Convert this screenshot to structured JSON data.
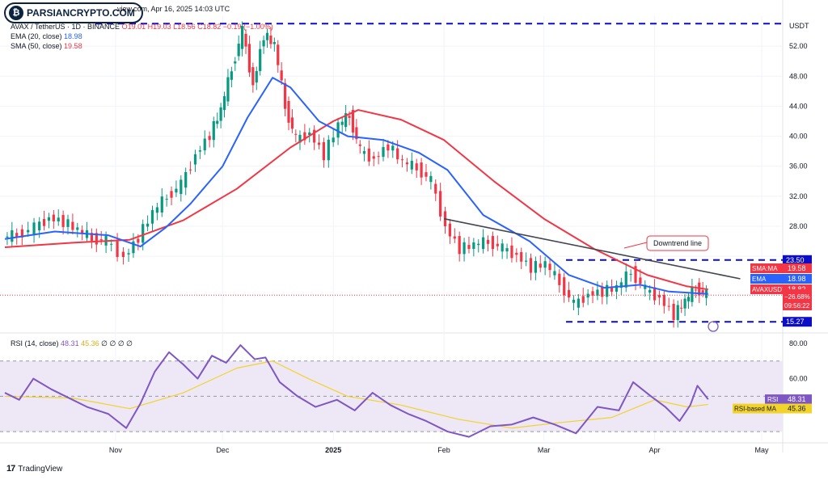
{
  "brand": {
    "name": "PARSIANCRYPTO.COM",
    "logo_icon": "bitcoin-logo-icon"
  },
  "header": {
    "publish_info": "view.com, Apr 16, 2025 14:03 UTC",
    "symbol": "AVAX / TetherUS · 1D · BINANCE",
    "ohlc": {
      "o": "O19.01",
      "h": "H19.03",
      "l": "L18.56",
      "c": "C18.82",
      "chg": "−0.19 (−1.00%)"
    },
    "ema_label": "EMA (20, close)",
    "ema_value": "18.98",
    "sma_label": "SMA (50, close)",
    "sma_value": "19.58"
  },
  "rsi_panel": {
    "label": "RSI (14, close)",
    "rsi_value": "48.31",
    "ma_value": "45.36",
    "extras": "∅ ∅ ∅ ∅"
  },
  "footer": {
    "brand": "TradingView",
    "icon": "tradingview-logo-icon"
  },
  "colors": {
    "up": "#089981",
    "down": "#f23645",
    "ema": "#2962ff",
    "sma": "#f23645",
    "rsi": "#7e57c2",
    "rsi_ma": "#f2d32b",
    "band": "#ede7f6",
    "support": "#0d0dc6",
    "trendline": "#434651"
  },
  "chart_data": [
    {
      "type": "candlestick",
      "title": "AVAX / TetherUS · 1D · BINANCE",
      "y_axis_unit": "USDT",
      "yticks": [
        24.0,
        28.0,
        32.0,
        36.0,
        40.0,
        44.0,
        48.0,
        52.0
      ],
      "ytick_labels": [
        "",
        "28.00",
        "32.00",
        "36.00",
        "40.00",
        "44.00",
        "48.00",
        "52.00"
      ],
      "ylim": [
        14.0,
        56.0
      ],
      "x_labels": [
        "Nov",
        "Dec",
        "2025",
        "Feb",
        "Mar",
        "Apr",
        "May"
      ],
      "x_range": [
        "2024-10-01",
        "2025-05-01"
      ],
      "grid": true,
      "horizontal_levels": [
        {
          "price": 55.0,
          "label": ""
        },
        {
          "price": 23.5,
          "label": "23.50"
        },
        {
          "price": 15.27,
          "label": "15.27"
        }
      ],
      "annotations": [
        {
          "text": "Downtrend line",
          "from": [
            "2025-02-01",
            29.0
          ],
          "to": [
            "2025-04-25",
            21.0
          ]
        }
      ],
      "price_labels": [
        {
          "name": "SMA:MA",
          "value": "19.58"
        },
        {
          "name": "EMA",
          "value": "18.98"
        },
        {
          "name": "AVAXUSDT",
          "value": "18.82",
          "change": "−26.68%",
          "countdown": "09:56:22"
        }
      ],
      "series": [
        {
          "name": "AVAXUSDT",
          "kind": "close",
          "points": [
            [
              "2024-10-01",
              26.5
            ],
            [
              "2024-10-05",
              26.9
            ],
            [
              "2024-10-10",
              27.8
            ],
            [
              "2024-10-14",
              29.2
            ],
            [
              "2024-10-18",
              28.6
            ],
            [
              "2024-10-22",
              27.5
            ],
            [
              "2024-10-26",
              26.4
            ],
            [
              "2024-10-30",
              26.0
            ],
            [
              "2024-11-04",
              23.9
            ],
            [
              "2024-11-08",
              26.5
            ],
            [
              "2024-11-12",
              29.8
            ],
            [
              "2024-11-16",
              32.0
            ],
            [
              "2024-11-20",
              33.5
            ],
            [
              "2024-11-24",
              37.6
            ],
            [
              "2024-11-28",
              40.2
            ],
            [
              "2024-12-01",
              43.5
            ],
            [
              "2024-12-04",
              49.0
            ],
            [
              "2024-12-07",
              54.0
            ],
            [
              "2024-12-10",
              46.8
            ],
            [
              "2024-12-13",
              53.5
            ],
            [
              "2024-12-16",
              52.2
            ],
            [
              "2024-12-19",
              44.0
            ],
            [
              "2024-12-22",
              39.5
            ],
            [
              "2024-12-26",
              40.5
            ],
            [
              "2024-12-30",
              37.5
            ],
            [
              "2025-01-03",
              41.5
            ],
            [
              "2025-01-06",
              42.8
            ],
            [
              "2025-01-09",
              38.0
            ],
            [
              "2025-01-13",
              37.0
            ],
            [
              "2025-01-17",
              38.8
            ],
            [
              "2025-01-21",
              36.5
            ],
            [
              "2025-01-25",
              35.8
            ],
            [
              "2025-01-29",
              34.0
            ],
            [
              "2025-02-02",
              28.0
            ],
            [
              "2025-02-06",
              25.0
            ],
            [
              "2025-02-10",
              25.5
            ],
            [
              "2025-02-14",
              26.0
            ],
            [
              "2025-02-18",
              25.0
            ],
            [
              "2025-02-22",
              24.2
            ],
            [
              "2025-02-26",
              22.5
            ],
            [
              "2025-03-02",
              23.0
            ],
            [
              "2025-03-06",
              20.5
            ],
            [
              "2025-03-10",
              17.5
            ],
            [
              "2025-03-14",
              19.0
            ],
            [
              "2025-03-18",
              19.3
            ],
            [
              "2025-03-22",
              19.8
            ],
            [
              "2025-03-26",
              22.0
            ],
            [
              "2025-03-30",
              19.5
            ],
            [
              "2025-04-03",
              18.5
            ],
            [
              "2025-04-07",
              16.2
            ],
            [
              "2025-04-10",
              18.0
            ],
            [
              "2025-04-13",
              19.8
            ],
            [
              "2025-04-16",
              18.82
            ]
          ]
        },
        {
          "name": "EMA (20, close)",
          "points": [
            [
              "2024-10-01",
              26.3
            ],
            [
              "2024-10-15",
              27.3
            ],
            [
              "2024-10-30",
              26.8
            ],
            [
              "2024-11-08",
              25.3
            ],
            [
              "2024-11-15",
              27.8
            ],
            [
              "2024-11-22",
              31.0
            ],
            [
              "2024-12-01",
              36.0
            ],
            [
              "2024-12-08",
              42.5
            ],
            [
              "2024-12-15",
              47.8
            ],
            [
              "2024-12-20",
              46.5
            ],
            [
              "2024-12-28",
              42.0
            ],
            [
              "2025-01-05",
              40.0
            ],
            [
              "2025-01-15",
              39.5
            ],
            [
              "2025-01-25",
              37.8
            ],
            [
              "2025-02-02",
              35.5
            ],
            [
              "2025-02-12",
              29.5
            ],
            [
              "2025-02-25",
              26.0
            ],
            [
              "2025-03-08",
              21.5
            ],
            [
              "2025-03-18",
              19.8
            ],
            [
              "2025-03-28",
              20.2
            ],
            [
              "2025-04-05",
              19.3
            ],
            [
              "2025-04-16",
              18.98
            ]
          ]
        },
        {
          "name": "SMA (50, close)",
          "points": [
            [
              "2024-10-01",
              25.2
            ],
            [
              "2024-10-20",
              25.8
            ],
            [
              "2024-11-05",
              26.2
            ],
            [
              "2024-11-20",
              28.8
            ],
            [
              "2024-12-05",
              33.0
            ],
            [
              "2024-12-20",
              38.5
            ],
            [
              "2025-01-01",
              42.0
            ],
            [
              "2025-01-08",
              43.5
            ],
            [
              "2025-01-20",
              42.2
            ],
            [
              "2025-02-01",
              39.5
            ],
            [
              "2025-02-15",
              34.0
            ],
            [
              "2025-03-01",
              29.0
            ],
            [
              "2025-03-15",
              25.0
            ],
            [
              "2025-03-30",
              21.5
            ],
            [
              "2025-04-10",
              20.0
            ],
            [
              "2025-04-16",
              19.58
            ]
          ]
        }
      ]
    },
    {
      "type": "line",
      "title": "RSI (14, close)",
      "yticks": [
        40.0,
        60.0,
        80.0
      ],
      "ytick_labels": [
        "",
        "60.00",
        "80.00"
      ],
      "ylim": [
        25,
        85
      ],
      "bands": [
        70,
        30
      ],
      "midline": 50,
      "series": [
        {
          "name": "RSI",
          "points": [
            [
              "2024-10-01",
              52
            ],
            [
              "2024-10-05",
              48
            ],
            [
              "2024-10-09",
              60
            ],
            [
              "2024-10-14",
              54
            ],
            [
              "2024-10-18",
              50
            ],
            [
              "2024-10-24",
              44
            ],
            [
              "2024-10-30",
              40
            ],
            [
              "2024-11-04",
              32
            ],
            [
              "2024-11-08",
              46
            ],
            [
              "2024-11-12",
              64
            ],
            [
              "2024-11-16",
              75
            ],
            [
              "2024-11-20",
              68
            ],
            [
              "2024-11-24",
              60
            ],
            [
              "2024-11-28",
              73
            ],
            [
              "2024-12-02",
              69
            ],
            [
              "2024-12-06",
              79
            ],
            [
              "2024-12-10",
              71
            ],
            [
              "2024-12-13",
              72
            ],
            [
              "2024-12-17",
              58
            ],
            [
              "2024-12-22",
              50
            ],
            [
              "2024-12-27",
              44
            ],
            [
              "2025-01-02",
              48
            ],
            [
              "2025-01-07",
              42
            ],
            [
              "2025-01-12",
              52
            ],
            [
              "2025-01-17",
              45
            ],
            [
              "2025-01-22",
              40
            ],
            [
              "2025-01-27",
              36
            ],
            [
              "2025-02-02",
              30
            ],
            [
              "2025-02-08",
              27
            ],
            [
              "2025-02-14",
              33
            ],
            [
              "2025-02-20",
              34
            ],
            [
              "2025-02-26",
              38
            ],
            [
              "2025-03-04",
              34
            ],
            [
              "2025-03-10",
              29
            ],
            [
              "2025-03-16",
              44
            ],
            [
              "2025-03-22",
              42
            ],
            [
              "2025-03-26",
              58
            ],
            [
              "2025-03-31",
              50
            ],
            [
              "2025-04-04",
              44
            ],
            [
              "2025-04-08",
              36
            ],
            [
              "2025-04-11",
              45
            ],
            [
              "2025-04-13",
              56
            ],
            [
              "2025-04-16",
              48.31
            ]
          ]
        },
        {
          "name": "RSI-based MA",
          "points": [
            [
              "2024-10-01",
              50
            ],
            [
              "2024-10-20",
              49
            ],
            [
              "2024-11-05",
              43
            ],
            [
              "2024-11-20",
              52
            ],
            [
              "2024-12-05",
              66
            ],
            [
              "2024-12-15",
              70
            ],
            [
              "2024-12-25",
              60
            ],
            [
              "2025-01-05",
              50
            ],
            [
              "2025-01-20",
              45
            ],
            [
              "2025-02-05",
              37
            ],
            [
              "2025-02-20",
              32
            ],
            [
              "2025-03-05",
              35
            ],
            [
              "2025-03-20",
              38
            ],
            [
              "2025-04-01",
              48
            ],
            [
              "2025-04-10",
              44
            ],
            [
              "2025-04-16",
              45.36
            ]
          ]
        }
      ],
      "value_labels": [
        {
          "name": "RSI",
          "value": "48.31"
        },
        {
          "name": "RSI-based MA",
          "value": "45.36"
        }
      ]
    }
  ]
}
